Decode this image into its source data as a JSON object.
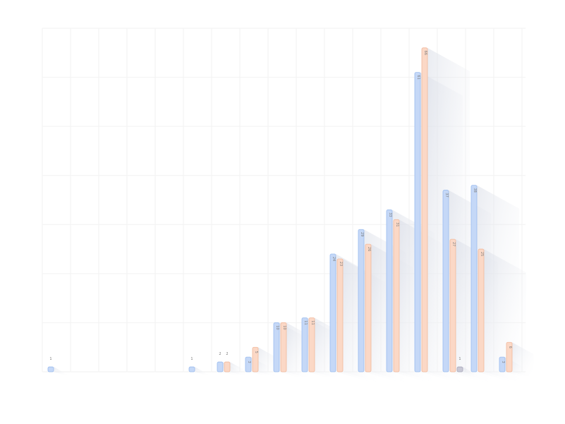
{
  "chart_data": {
    "type": "bar",
    "title": "",
    "xlabel": "",
    "ylabel": "",
    "ylim": [
      0,
      70
    ],
    "grid": true,
    "legend": "none",
    "colors": {
      "series_a": "#c5d8f7",
      "series_a_edge": "#9bbcee",
      "series_b": "#fbd8c6",
      "series_b_edge": "#f1b89b",
      "series_c": "#c9c9d6",
      "series_c_edge": "#a8a8bb"
    },
    "categories": [
      "",
      "",
      "",
      "",
      "",
      "",
      "",
      "",
      "",
      "",
      "",
      "",
      "",
      "",
      "",
      "",
      ""
    ],
    "series": [
      {
        "values": [
          1,
          0,
          0,
          0,
          0,
          1,
          2,
          3,
          10,
          11,
          24,
          29,
          33,
          61,
          37,
          38,
          3
        ]
      },
      {
        "values": [
          0,
          0,
          0,
          0,
          0,
          0,
          2,
          5,
          10,
          11,
          23,
          26,
          31,
          66,
          27,
          25,
          6
        ]
      },
      {
        "values": [
          0,
          0,
          0,
          0,
          0,
          0,
          0,
          0,
          0,
          0,
          0,
          0,
          0,
          0,
          1,
          0,
          0
        ]
      }
    ]
  }
}
